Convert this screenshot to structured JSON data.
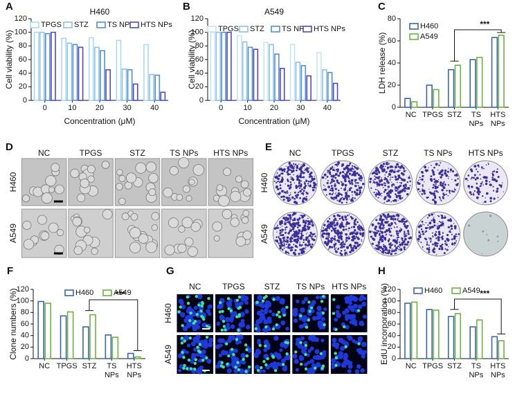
{
  "chart_data": [
    {
      "label": "A",
      "type": "bar",
      "title": "H460",
      "x_label": "Concentration (μM)",
      "y_label": "Cell viability (%)",
      "categories": [
        "0",
        "10",
        "20",
        "30",
        "40"
      ],
      "series": [
        {
          "name": "TPGS",
          "color": "#a9d8f5",
          "values": [
            100,
            91,
            92,
            88,
            82
          ]
        },
        {
          "name": "STZ",
          "color": "#8fc0e8",
          "values": [
            100,
            84,
            78,
            46,
            38
          ]
        },
        {
          "name": "TS NPs",
          "color": "#4f8fd8",
          "values": [
            98,
            82,
            73,
            45,
            37
          ]
        },
        {
          "name": "HTS NPs",
          "color": "#5146c9",
          "values": [
            100,
            78,
            45,
            24,
            12
          ]
        }
      ],
      "ylim": [
        0,
        120
      ],
      "yticks": [
        0,
        20,
        40,
        60,
        80,
        100,
        120
      ]
    },
    {
      "label": "B",
      "type": "bar",
      "title": "A549",
      "x_label": "Concentration (μM)",
      "y_label": "Cell viability (%)",
      "categories": [
        "0",
        "10",
        "20",
        "30",
        "40"
      ],
      "series": [
        {
          "name": "TPGS",
          "color": "#c6e4f7",
          "values": [
            100,
            95,
            85,
            82,
            70
          ]
        },
        {
          "name": "STZ",
          "color": "#8fc0e8",
          "values": [
            100,
            86,
            82,
            56,
            45
          ]
        },
        {
          "name": "TS NPs",
          "color": "#4f8fd8",
          "values": [
            100,
            78,
            68,
            51,
            41
          ]
        },
        {
          "name": "HTS NPs",
          "color": "#5146c9",
          "values": [
            100,
            75,
            47,
            36,
            25
          ]
        }
      ],
      "ylim": [
        0,
        120
      ],
      "yticks": [
        0,
        20,
        40,
        60,
        80,
        100,
        120
      ]
    },
    {
      "label": "C",
      "type": "bar",
      "y_label": "LDH release (%)",
      "annotation": "***",
      "categories": [
        "NC",
        "TPGS",
        "STZ",
        "TS NPs",
        "HTS NPs"
      ],
      "series": [
        {
          "name": "H460",
          "color": "#3a63b8",
          "values": [
            8,
            20,
            34,
            43,
            63
          ]
        },
        {
          "name": "A549",
          "color": "#6cb33f",
          "values": [
            5,
            16,
            38,
            45,
            65
          ]
        }
      ],
      "ylim": [
        0,
        80
      ],
      "yticks": [
        0,
        20,
        40,
        60,
        80
      ]
    },
    {
      "label": "F",
      "type": "bar",
      "y_label": "Clone numbers (%)",
      "annotation": "***",
      "categories": [
        "NC",
        "TPGS",
        "STZ",
        "TS NPs",
        "HTS NPs"
      ],
      "series": [
        {
          "name": "H460",
          "color": "#3a63b8",
          "values": [
            99,
            74,
            55,
            41,
            9
          ]
        },
        {
          "name": "A549",
          "color": "#6cb33f",
          "values": [
            96,
            81,
            76,
            37,
            3
          ]
        }
      ],
      "ylim": [
        0,
        120
      ],
      "yticks": [
        0,
        20,
        40,
        60,
        80,
        100,
        120
      ]
    },
    {
      "label": "H",
      "type": "bar",
      "y_label": "EdU incorporation (%)",
      "annotation": "***",
      "categories": [
        "NC",
        "TPGS",
        "STZ",
        "TS NPs",
        "HTS NPs"
      ],
      "series": [
        {
          "name": "H460",
          "color": "#3a63b8",
          "values": [
            96,
            85,
            73,
            55,
            38
          ]
        },
        {
          "name": "A549",
          "color": "#6cb33f",
          "values": [
            98,
            84,
            78,
            67,
            31
          ]
        }
      ],
      "ylim": [
        0,
        120
      ],
      "yticks": [
        0,
        20,
        40,
        60,
        80,
        100,
        120
      ]
    }
  ],
  "image_panels": [
    {
      "label": "D",
      "style": "brightfield",
      "columns": [
        "NC",
        "TPGS",
        "STZ",
        "TS NPs",
        "HTS NPs"
      ],
      "rows": [
        "H460",
        "A549"
      ]
    },
    {
      "label": "E",
      "style": "colony",
      "columns": [
        "NC",
        "TPGS",
        "STZ",
        "TS NPs",
        "HTS NPs"
      ],
      "rows": [
        "H460",
        "A549"
      ]
    },
    {
      "label": "G",
      "style": "fluorescence",
      "columns": [
        "NC",
        "TPGS",
        "STZ",
        "TS NPs",
        "HTS NPs"
      ],
      "rows": [
        "H460",
        "A549"
      ]
    }
  ]
}
